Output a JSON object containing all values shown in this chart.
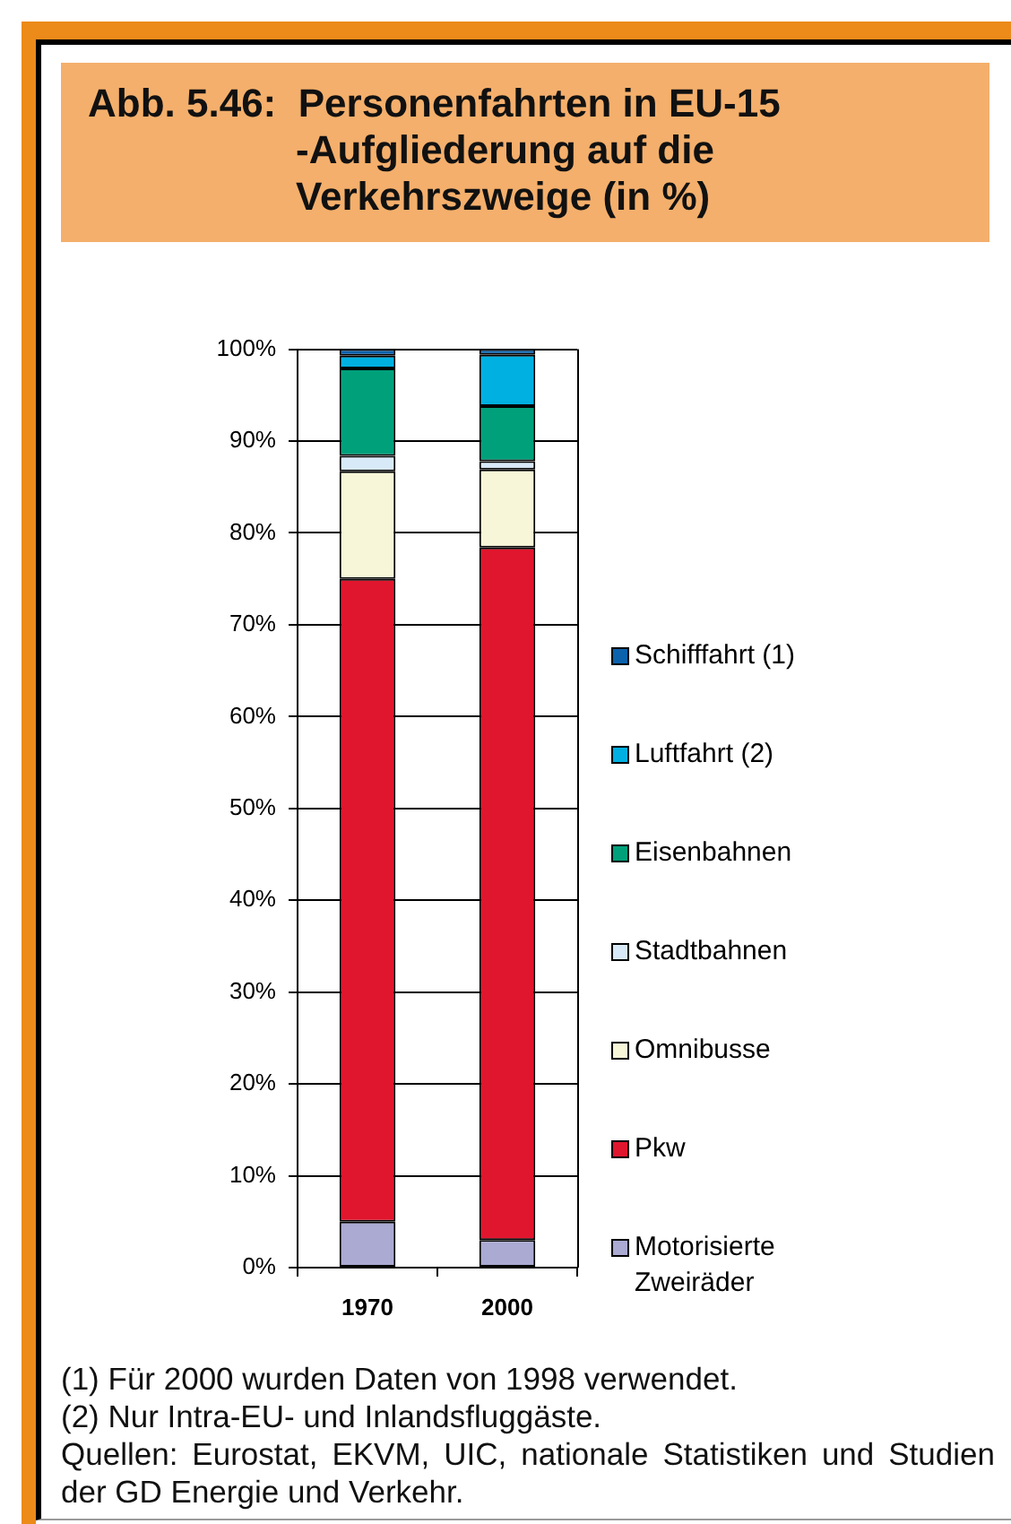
{
  "chart_data": {
    "type": "bar",
    "title": "Abb. 5.46:  Personenfahrten in EU-15\n-Aufgliederung auf die\nVerkehrszweige (in %)",
    "categories": [
      "1970",
      "2000"
    ],
    "stacked": true,
    "series": [
      {
        "name": "Motorisierte Zweiräder",
        "color": "#aaaad2",
        "values": [
          5,
          3
        ]
      },
      {
        "name": "Pkw",
        "color": "#e0162e",
        "values": [
          70,
          75.4
        ]
      },
      {
        "name": "Omnibusse",
        "color": "#f8f6d8",
        "values": [
          11.7,
          8.5
        ]
      },
      {
        "name": "Stadtbahnen",
        "color": "#d8eaf8",
        "values": [
          1.7,
          0.9
        ]
      },
      {
        "name": "Eisenbahnen",
        "color": "#00a07a",
        "values": [
          9.5,
          6
        ]
      },
      {
        "name": "Luftfahrt (2)",
        "color": "#00b0e0",
        "values": [
          1.4,
          5.6
        ]
      },
      {
        "name": "Schifffahrt (1)",
        "color": "#0d62ac",
        "values": [
          0.7,
          0.6
        ]
      }
    ],
    "ylim": [
      0,
      100
    ],
    "yticks": [
      {
        "value": 0,
        "label": "0%"
      },
      {
        "value": 10,
        "label": "10%"
      },
      {
        "value": 20,
        "label": "20%"
      },
      {
        "value": 30,
        "label": "30%"
      },
      {
        "value": 40,
        "label": "40%"
      },
      {
        "value": 50,
        "label": "50%"
      },
      {
        "value": 60,
        "label": "60%"
      },
      {
        "value": 70,
        "label": "70%"
      },
      {
        "value": 80,
        "label": "80%"
      },
      {
        "value": 90,
        "label": "90%"
      },
      {
        "value": 100,
        "label": "100%"
      }
    ],
    "grid": "y",
    "legend": "right",
    "annotations": [
      "(1) Für 2000 wurden Daten von 1998 verwendet.",
      "(2) Nur Intra-EU- und Inlandsfluggäste.",
      "Quellen: Eurostat, EKVM, UIC, nationale Statistiken und Studien der GD Energie und Verkehr."
    ]
  }
}
